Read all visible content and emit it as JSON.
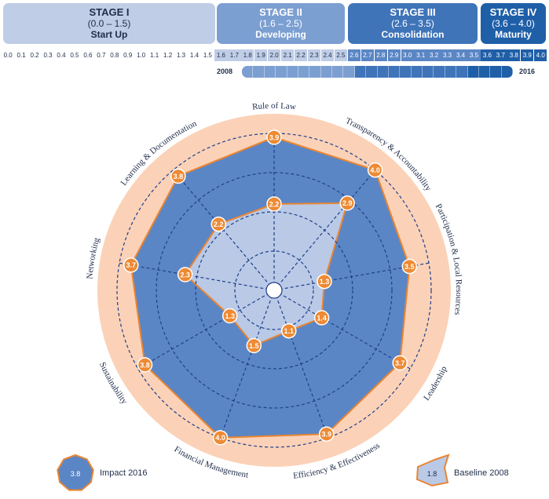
{
  "stages": [
    {
      "title": "STAGE I",
      "range": "(0.0 – 1.5)",
      "name": "Start Up",
      "color": "#bfcde6",
      "text": "#1f2d4a"
    },
    {
      "title": "STAGE II",
      "range": "(1.6 – 2.5)",
      "name": "Developing",
      "color": "#7c9fd2",
      "text": "#ffffff"
    },
    {
      "title": "STAGE III",
      "range": "(2.6 – 3.5)",
      "name": "Consolidation",
      "color": "#3f74b9",
      "text": "#ffffff"
    },
    {
      "title": "STAGE IV",
      "range": "(3.6 – 4.0)",
      "name": "Maturity",
      "color": "#1f5fa8",
      "text": "#ffffff"
    }
  ],
  "scale_ticks": [
    "0.0",
    "0.1",
    "0.2",
    "0.3",
    "0.4",
    "0.5",
    "0.6",
    "0.7",
    "0.8",
    "0.9",
    "1.0",
    "1.1",
    "1.2",
    "1.3",
    "1.4",
    "1.5",
    "1.6",
    "1.7",
    "1.8",
    "1.9",
    "2.0",
    "2.1",
    "2.2",
    "2.3",
    "2.4",
    "2.5",
    "2.6",
    "2.7",
    "2.8",
    "2.9",
    "3.0",
    "3.1",
    "3.2",
    "3.3",
    "3.4",
    "3.5",
    "3.6",
    "3.7",
    "3.8",
    "3.9",
    "4.0"
  ],
  "progress": {
    "start_label": "2008",
    "end_label": "2016"
  },
  "legend": {
    "impact": {
      "label": "Impact 2016",
      "value": "3.8"
    },
    "baseline": {
      "label": "Baseline 2008",
      "value": "1.8"
    }
  },
  "colors": {
    "outer_ring": "#fbd2b8",
    "impact_fill": "#5b86c5",
    "baseline_fill": "#b9c9e6",
    "marker": "#ee8a33",
    "stroke": "#e98532",
    "grid": "#1f3f8a"
  },
  "chart_data": {
    "type": "radar",
    "categories": [
      "Rule of Law",
      "Transparency & Accountability",
      "Participation & Local Resources",
      "Leadership",
      "Efficiency & Effectiveness",
      "Financial Management",
      "Sustainability",
      "Networking",
      "Learning & Documentation"
    ],
    "rmax": 4.0,
    "series": [
      {
        "name": "Impact 2016",
        "values": [
          3.9,
          4.0,
          3.5,
          3.7,
          3.9,
          4.0,
          3.8,
          3.7,
          3.8
        ]
      },
      {
        "name": "Baseline 2008",
        "values": [
          2.2,
          2.9,
          1.3,
          1.4,
          1.1,
          1.5,
          1.3,
          2.3,
          2.2
        ]
      }
    ]
  }
}
